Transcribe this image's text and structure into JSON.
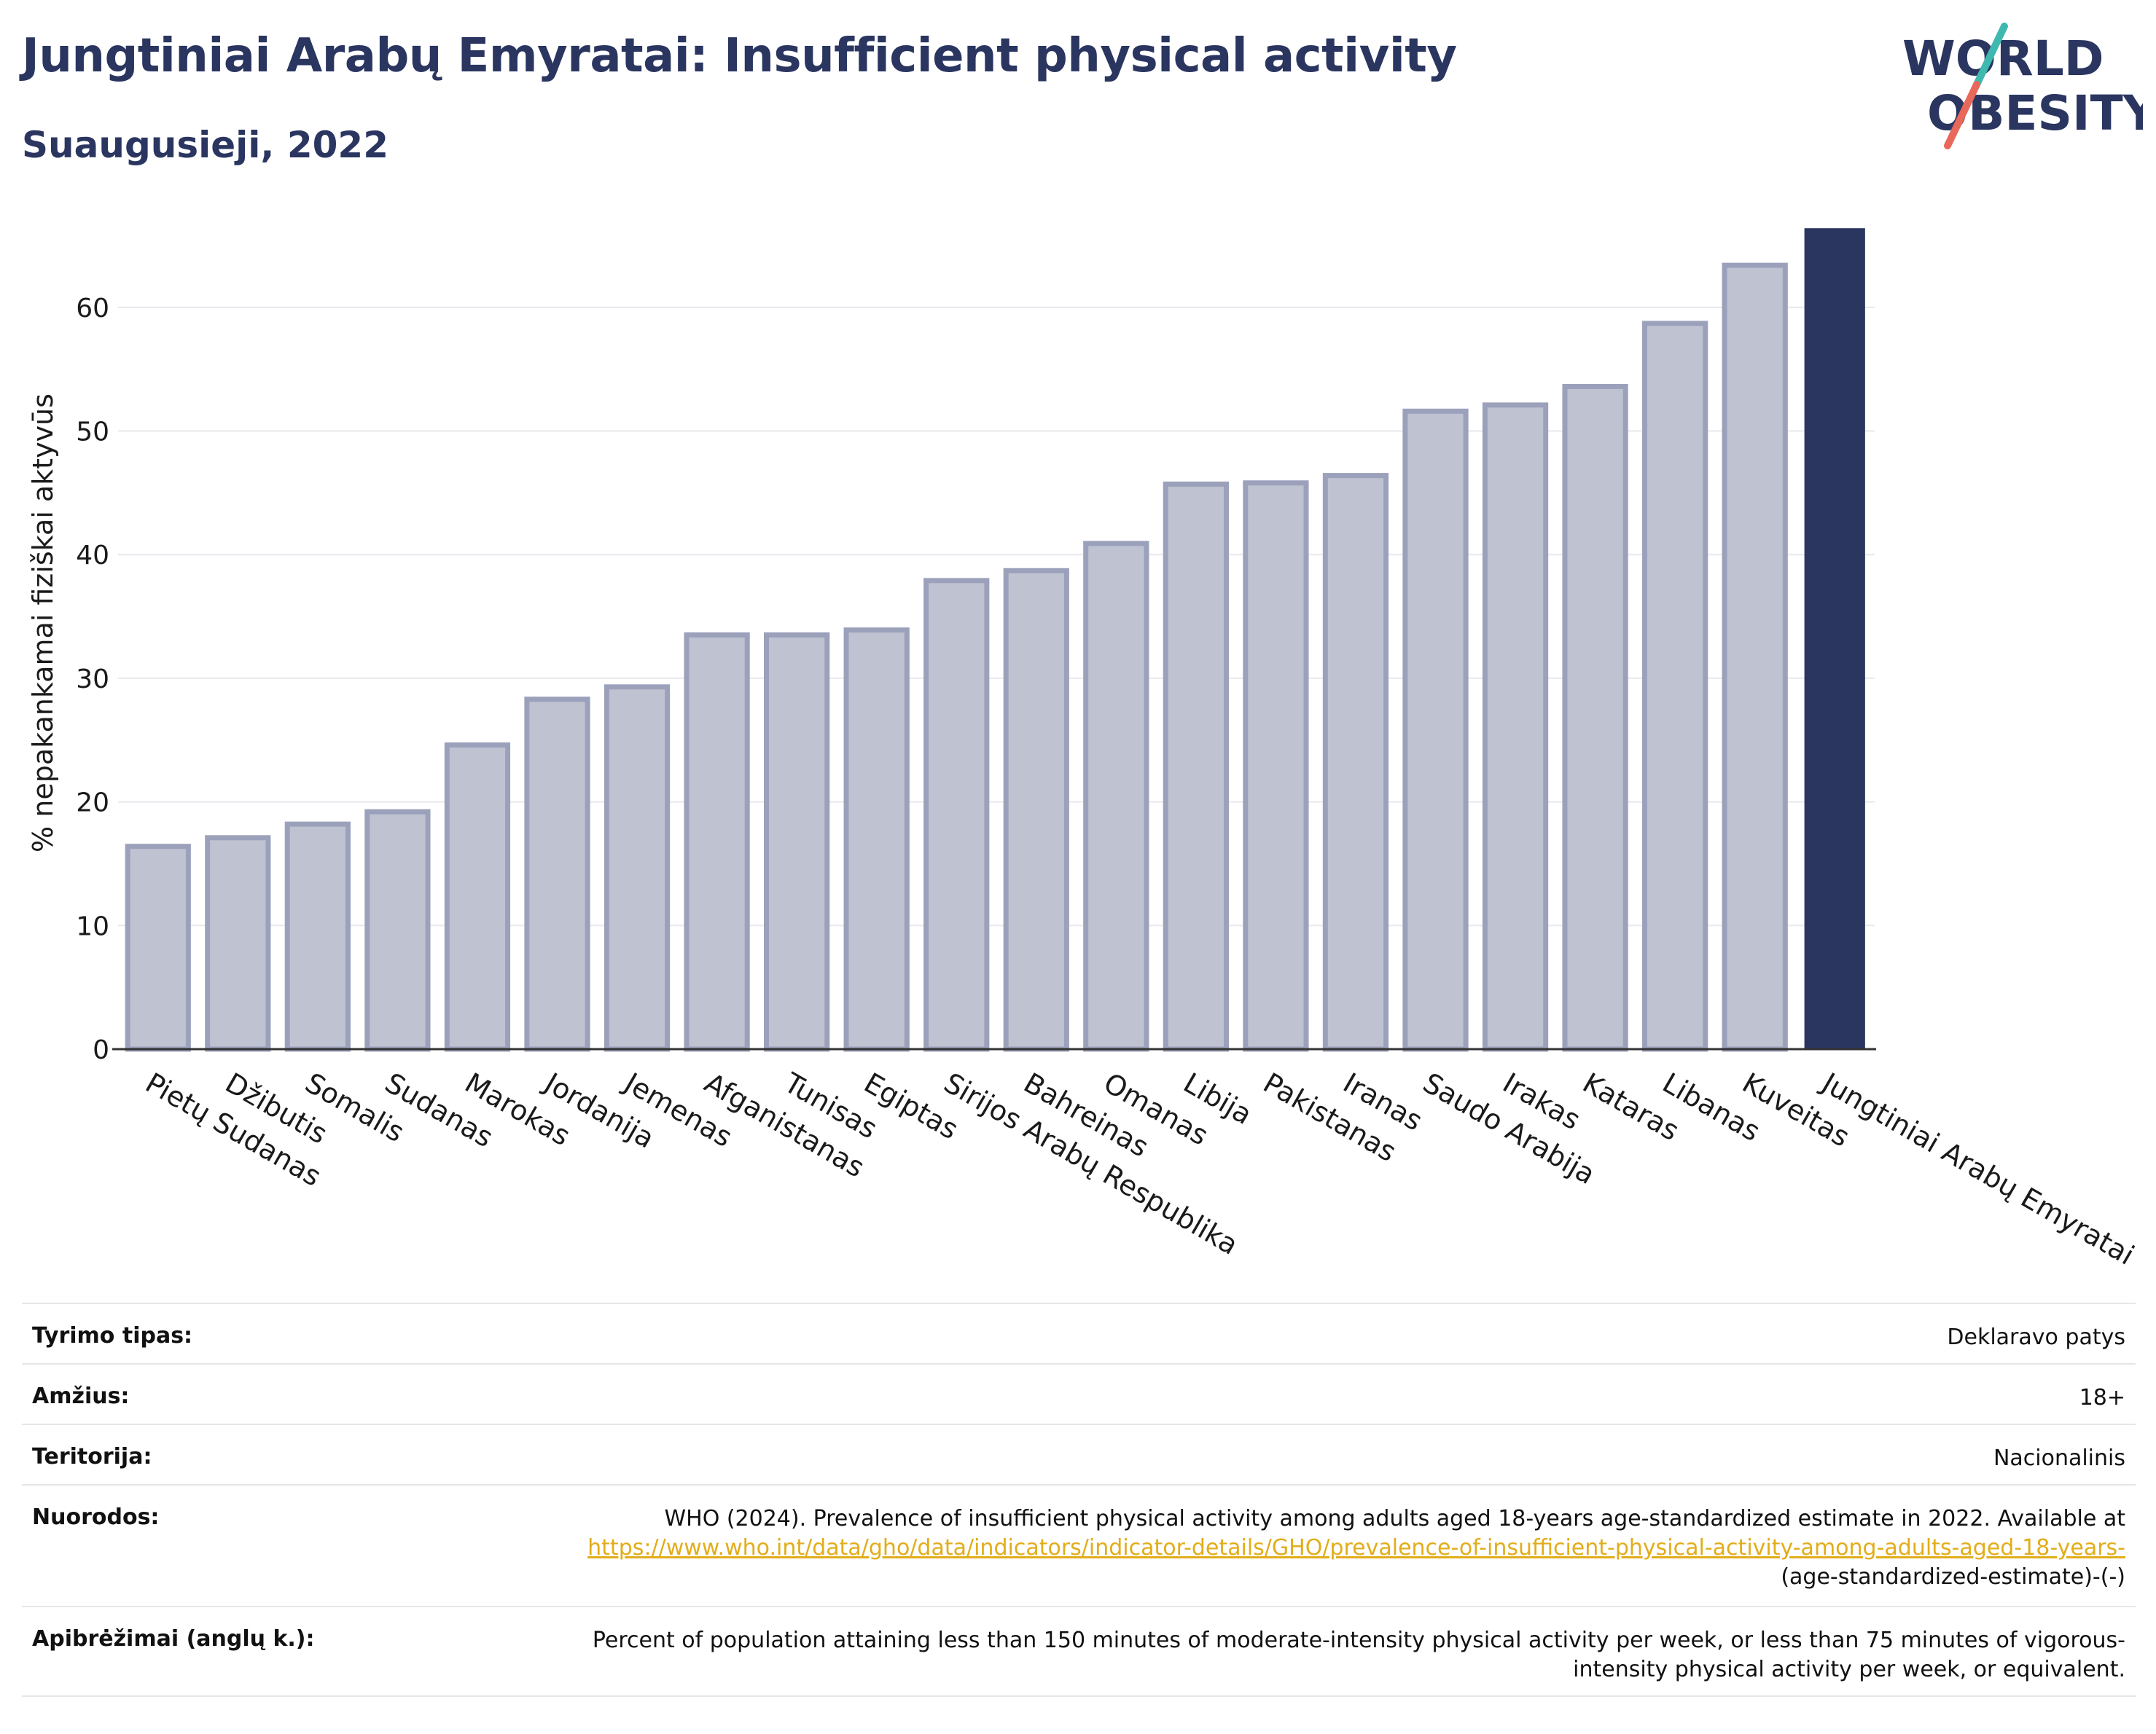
{
  "header": {
    "title": "Jungtiniai Arabų Emyratai: Insufficient physical activity",
    "subtitle": "Suaugusieji, 2022"
  },
  "logo": {
    "line1": "WORLD",
    "line2": "OBESITY",
    "accent_colors": [
      "#e8685a",
      "#3fb8b0"
    ]
  },
  "colors": {
    "bar_default": "#bfc2d1",
    "bar_stroke": "#9ca1bb",
    "bar_highlight": "#2a3560",
    "grid": "#e8e8ee"
  },
  "chart_data": {
    "type": "bar",
    "title": "Jungtiniai Arabų Emyratai: Insufficient physical activity",
    "subtitle": "Suaugusieji, 2022",
    "xlabel": "",
    "ylabel": "% nepakankamai fiziškai aktyvūs",
    "ylim": [
      0,
      66
    ],
    "yticks": [
      0,
      10,
      20,
      30,
      40,
      50,
      60
    ],
    "grid": true,
    "highlight": "Jungtiniai Arabų Emyratai",
    "categories": [
      "Pietų Sudanas",
      "Džibutis",
      "Somalis",
      "Sudanas",
      "Marokas",
      "Jordanija",
      "Jemenas",
      "Afganistanas",
      "Tunisas",
      "Egiptas",
      "Sirijos Arabų Respublika",
      "Bahreinas",
      "Omanas",
      "Libija",
      "Pakistanas",
      "Iranas",
      "Saudo Arabija",
      "Irakas",
      "Kataras",
      "Libanas",
      "Kuveitas",
      "Jungtiniai Arabų Emyratai"
    ],
    "values": [
      16.4,
      17.1,
      18.2,
      19.2,
      24.6,
      28.3,
      29.3,
      33.5,
      33.5,
      33.9,
      37.9,
      38.7,
      40.9,
      45.7,
      45.8,
      46.4,
      51.6,
      52.1,
      53.6,
      58.7,
      63.4,
      66.4
    ]
  },
  "meta": {
    "rows": [
      {
        "label": "Tyrimo tipas:",
        "value": "Deklaravo patys"
      },
      {
        "label": "Amžius:",
        "value": "18+"
      },
      {
        "label": "Teritorija:",
        "value": "Nacionalinis"
      },
      {
        "label": "Nuorodos:",
        "value_before": "WHO (2024). Prevalence of insufficient physical activity among adults aged 18-years age-standardized estimate in 2022. Available at ",
        "link": "https://www.who.int/data/gho/data/indicators/indicator-details/GHO/prevalence-of-insufficient-physical-activity-among-adults-aged-18-years-",
        "value_after": "(age-standardized-estimate)-(-)"
      },
      {
        "label": "Apibrėžimai (anglų k.):",
        "value": "Percent of population attaining less than 150 minutes of moderate-intensity physical activity per week, or less than 75 minutes of vigorous-intensity physical activity per week, or equivalent."
      }
    ]
  }
}
